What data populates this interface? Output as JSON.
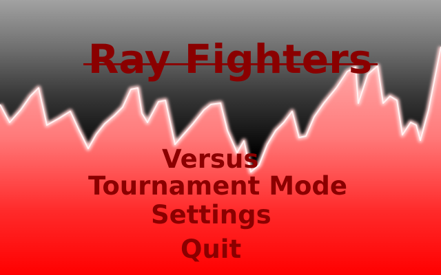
{
  "game": {
    "title": "Ray Fighters"
  },
  "menu": {
    "items": [
      {
        "id": "versus",
        "label": "Versus"
      },
      {
        "id": "tournament",
        "label": "Tournament Mode"
      },
      {
        "id": "settings",
        "label": "Settings"
      },
      {
        "id": "quit",
        "label": "Quit"
      }
    ]
  },
  "colors": {
    "text": "#8b0000",
    "mountain_top": "#ff8080",
    "mountain_bottom": "#ff0000",
    "sky_top": "#a2a2a2",
    "sky_bottom": "#000000",
    "ridge_glow": "#ffe0e0"
  }
}
